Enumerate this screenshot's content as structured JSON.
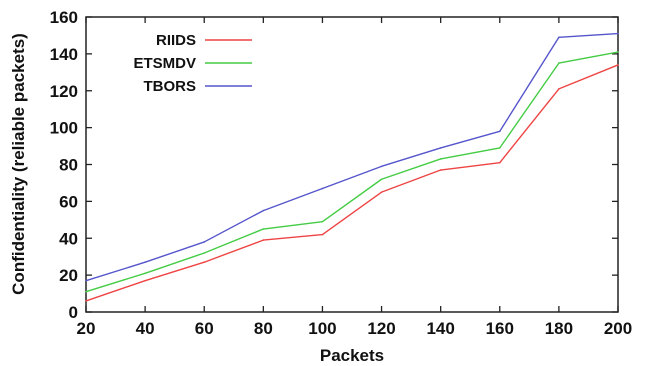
{
  "chart_data": {
    "type": "line",
    "xlabel": "Packets",
    "ylabel": "Confidentiality (reliable packets)",
    "xlim": [
      20,
      200
    ],
    "ylim": [
      0,
      160
    ],
    "x_ticks": [
      20,
      40,
      60,
      80,
      100,
      120,
      140,
      160,
      180,
      200
    ],
    "y_ticks": [
      0,
      20,
      40,
      60,
      80,
      100,
      120,
      140,
      160
    ],
    "grid": false,
    "legend_position": "top-left",
    "x": [
      20,
      40,
      60,
      80,
      100,
      120,
      140,
      160,
      180,
      200
    ],
    "series": [
      {
        "name": "RIIDS",
        "color": "#ee4444",
        "values": [
          6,
          17,
          27,
          39,
          42,
          65,
          77,
          81,
          121,
          134
        ]
      },
      {
        "name": "ETSMDV",
        "color": "#44cc44",
        "values": [
          11,
          21,
          32,
          45,
          49,
          72,
          83,
          89,
          135,
          141
        ]
      },
      {
        "name": "TBORS",
        "color": "#5555cc",
        "values": [
          17,
          27,
          38,
          55,
          67,
          79,
          89,
          98,
          149,
          151
        ]
      }
    ]
  }
}
